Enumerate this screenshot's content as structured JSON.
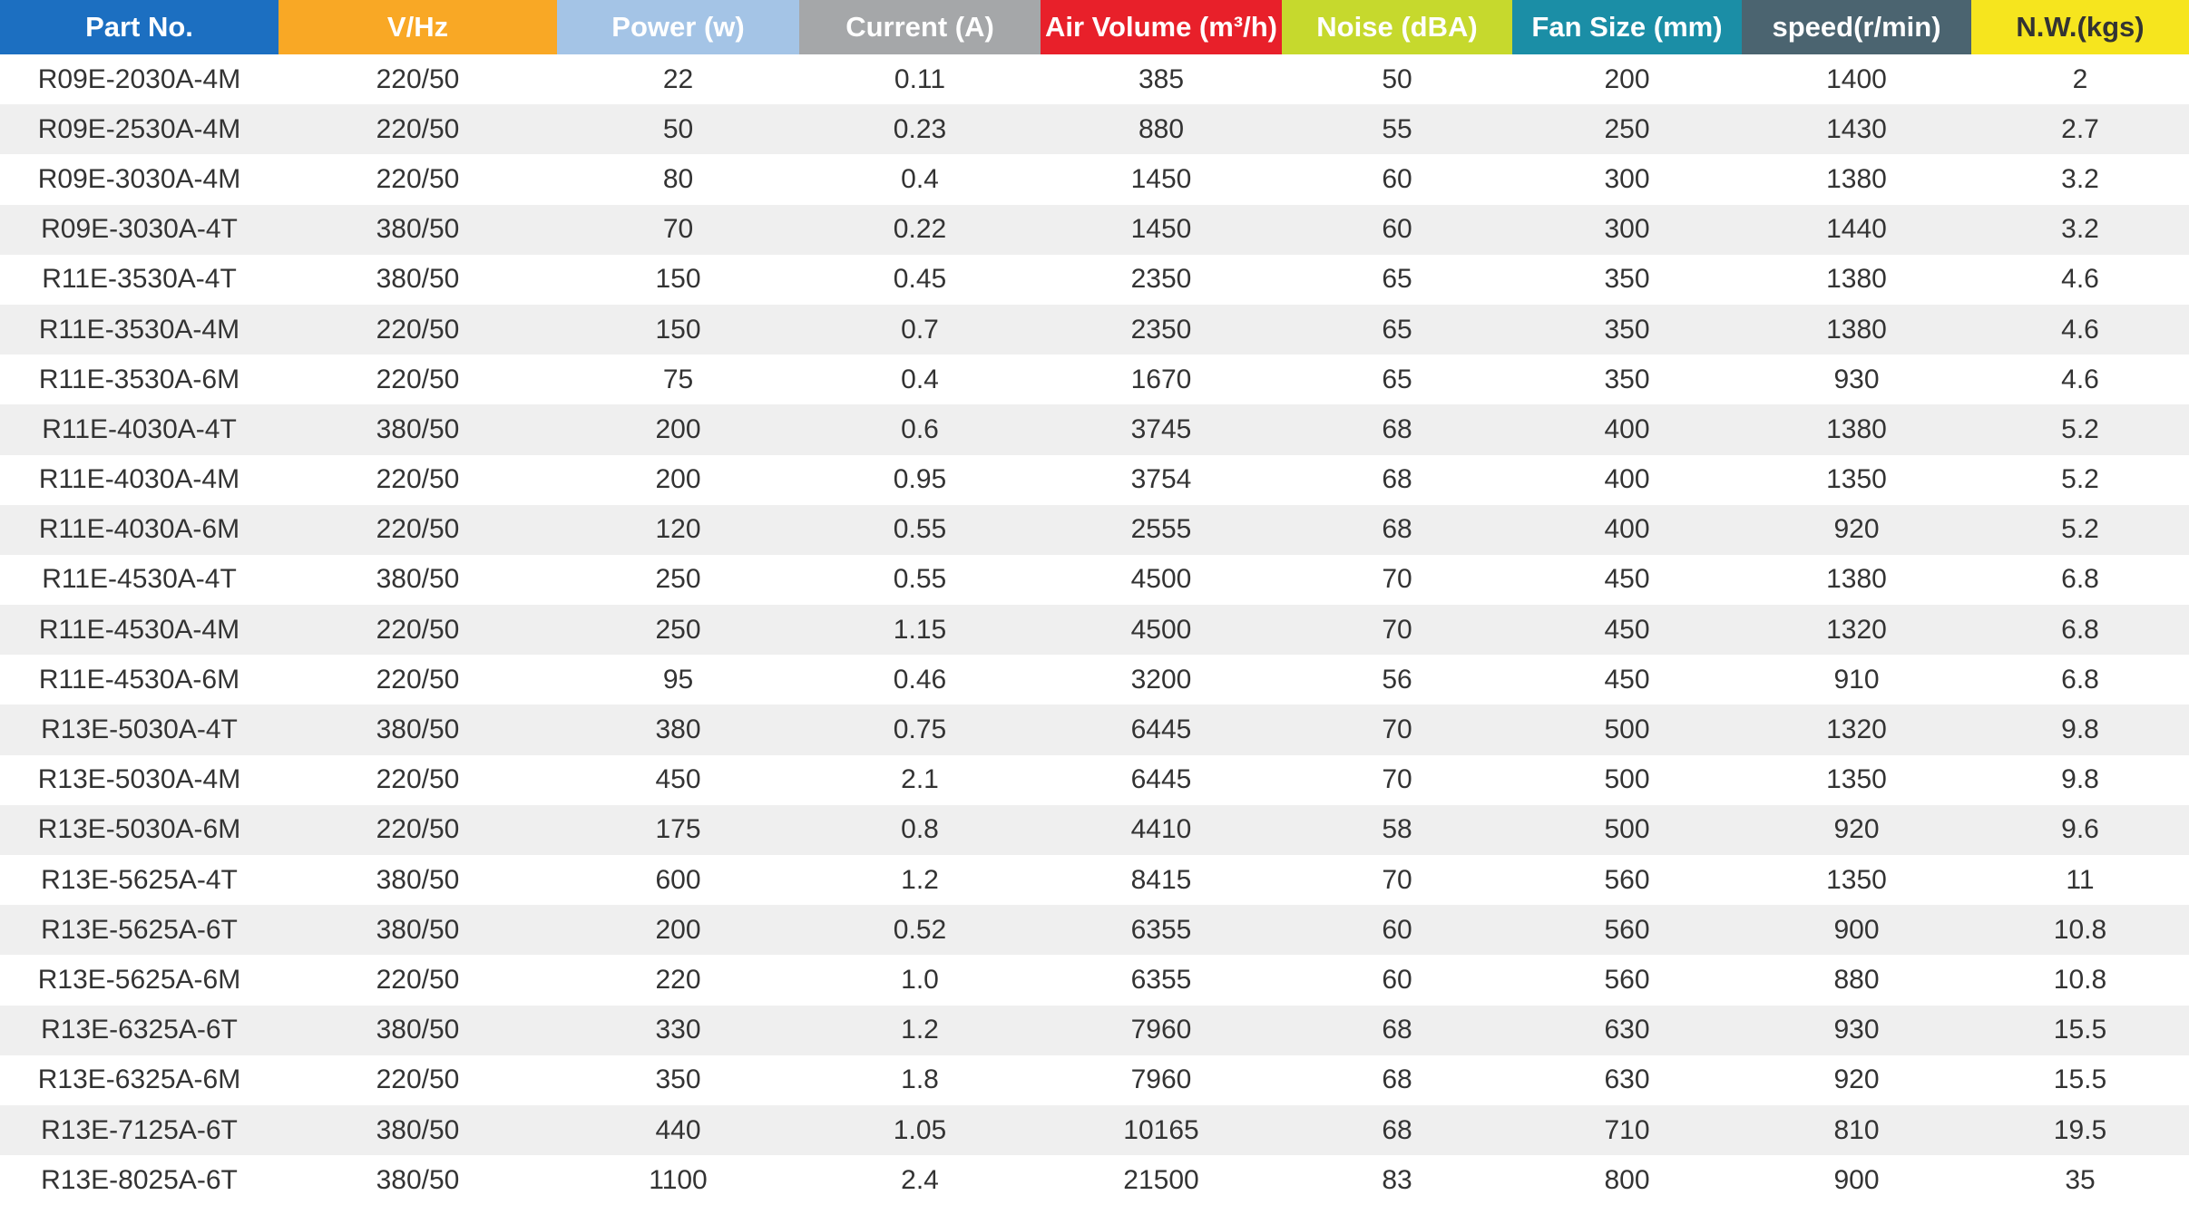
{
  "table": {
    "columns": [
      {
        "label": "Part No.",
        "bg": "#1c6fc1",
        "color": "#ffffff"
      },
      {
        "label": "V/Hz",
        "bg": "#f9a825",
        "color": "#ffffff"
      },
      {
        "label": "Power (w)",
        "bg": "#a4c4e6",
        "color": "#ffffff"
      },
      {
        "label": "Current (A)",
        "bg": "#a5a7a9",
        "color": "#ffffff"
      },
      {
        "label": "Air Volume (m³/h)",
        "bg": "#e8202a",
        "color": "#ffffff"
      },
      {
        "label": "Noise (dBA)",
        "bg": "#c6d92d",
        "color": "#ffffff"
      },
      {
        "label": "Fan Size (mm)",
        "bg": "#1b8ea6",
        "color": "#ffffff"
      },
      {
        "label": "speed(r/min)",
        "bg": "#4b6470",
        "color": "#ffffff"
      },
      {
        "label": "N.W.(kgs)",
        "bg": "#f6e51e",
        "color": "#333333"
      }
    ],
    "rows": [
      [
        "R09E-2030A-4M",
        "220/50",
        "22",
        "0.11",
        "385",
        "50",
        "200",
        "1400",
        "2"
      ],
      [
        "R09E-2530A-4M",
        "220/50",
        "50",
        "0.23",
        "880",
        "55",
        "250",
        "1430",
        "2.7"
      ],
      [
        "R09E-3030A-4M",
        "220/50",
        "80",
        "0.4",
        "1450",
        "60",
        "300",
        "1380",
        "3.2"
      ],
      [
        "R09E-3030A-4T",
        "380/50",
        "70",
        "0.22",
        "1450",
        "60",
        "300",
        "1440",
        "3.2"
      ],
      [
        "R11E-3530A-4T",
        "380/50",
        "150",
        "0.45",
        "2350",
        "65",
        "350",
        "1380",
        "4.6"
      ],
      [
        "R11E-3530A-4M",
        "220/50",
        "150",
        "0.7",
        "2350",
        "65",
        "350",
        "1380",
        "4.6"
      ],
      [
        "R11E-3530A-6M",
        "220/50",
        "75",
        "0.4",
        "1670",
        "65",
        "350",
        "930",
        "4.6"
      ],
      [
        "R11E-4030A-4T",
        "380/50",
        "200",
        "0.6",
        "3745",
        "68",
        "400",
        "1380",
        "5.2"
      ],
      [
        "R11E-4030A-4M",
        "220/50",
        "200",
        "0.95",
        "3754",
        "68",
        "400",
        "1350",
        "5.2"
      ],
      [
        "R11E-4030A-6M",
        "220/50",
        "120",
        "0.55",
        "2555",
        "68",
        "400",
        "920",
        "5.2"
      ],
      [
        "R11E-4530A-4T",
        "380/50",
        "250",
        "0.55",
        "4500",
        "70",
        "450",
        "1380",
        "6.8"
      ],
      [
        "R11E-4530A-4M",
        "220/50",
        "250",
        "1.15",
        "4500",
        "70",
        "450",
        "1320",
        "6.8"
      ],
      [
        "R11E-4530A-6M",
        "220/50",
        "95",
        "0.46",
        "3200",
        "56",
        "450",
        "910",
        "6.8"
      ],
      [
        "R13E-5030A-4T",
        "380/50",
        "380",
        "0.75",
        "6445",
        "70",
        "500",
        "1320",
        "9.8"
      ],
      [
        "R13E-5030A-4M",
        "220/50",
        "450",
        "2.1",
        "6445",
        "70",
        "500",
        "1350",
        "9.8"
      ],
      [
        "R13E-5030A-6M",
        "220/50",
        "175",
        "0.8",
        "4410",
        "58",
        "500",
        "920",
        "9.6"
      ],
      [
        "R13E-5625A-4T",
        "380/50",
        "600",
        "1.2",
        "8415",
        "70",
        "560",
        "1350",
        "11"
      ],
      [
        "R13E-5625A-6T",
        "380/50",
        "200",
        "0.52",
        "6355",
        "60",
        "560",
        "900",
        "10.8"
      ],
      [
        "R13E-5625A-6M",
        "220/50",
        "220",
        "1.0",
        "6355",
        "60",
        "560",
        "880",
        "10.8"
      ],
      [
        "R13E-6325A-6T",
        "380/50",
        "330",
        "1.2",
        "7960",
        "68",
        "630",
        "930",
        "15.5"
      ],
      [
        "R13E-6325A-6M",
        "220/50",
        "350",
        "1.8",
        "7960",
        "68",
        "630",
        "920",
        "15.5"
      ],
      [
        "R13E-7125A-6T",
        "380/50",
        "440",
        "1.05",
        "10165",
        "68",
        "710",
        "810",
        "19.5"
      ],
      [
        "R13E-8025A-6T",
        "380/50",
        "1100",
        "2.4",
        "21500",
        "83",
        "800",
        "900",
        "35"
      ]
    ]
  }
}
